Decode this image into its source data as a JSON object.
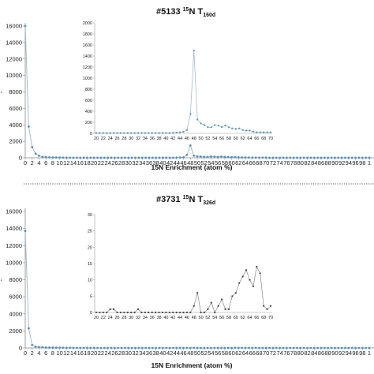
{
  "chart_data": [
    {
      "type": "line",
      "title": {
        "id": "#5133",
        "sup": "15",
        "main": "N T",
        "sub": "160d"
      },
      "xlabel": "15N Enrichment (atom %)",
      "xlim": [
        0,
        100
      ],
      "ylim": [
        0,
        16000
      ],
      "yticks": [
        0,
        2000,
        4000,
        6000,
        8000,
        10000,
        12000,
        14000,
        16000
      ],
      "xtick_labels": [
        "0",
        "2",
        "4",
        "6",
        "8",
        "10",
        "12",
        "14",
        "16",
        "18",
        "20",
        "22",
        "24",
        "26",
        "28",
        "30",
        "32",
        "34",
        "36",
        "38",
        "40",
        "42",
        "44",
        "46",
        "48",
        "50",
        "52",
        "54",
        "56",
        "58",
        "60",
        "62",
        "64",
        "66",
        "68",
        "70",
        "72",
        "74",
        "76",
        "78",
        "80",
        "82",
        "84",
        "86",
        "88",
        "90",
        "92",
        "94",
        "96",
        "98",
        "1"
      ],
      "series": [
        {
          "x": [
            0,
            1,
            2,
            3,
            4,
            5,
            6,
            7,
            8,
            9,
            10,
            11,
            12,
            13,
            14,
            15,
            16,
            17,
            18,
            19,
            20,
            21,
            22,
            23,
            24,
            25,
            26,
            27,
            28,
            29,
            30,
            31,
            32,
            33,
            34,
            35,
            36,
            37,
            38,
            39,
            40,
            41,
            42,
            43,
            44,
            45,
            46,
            47,
            48,
            49,
            50,
            51,
            52,
            53,
            54,
            55,
            56,
            57,
            58,
            59,
            60,
            61,
            62,
            63,
            64,
            65,
            66,
            67,
            68,
            69,
            70,
            71,
            72,
            73,
            74,
            75,
            76,
            77,
            78,
            79,
            80,
            81,
            82,
            83,
            84,
            85,
            86,
            87,
            88,
            89,
            90,
            91,
            92,
            93,
            94,
            95,
            96,
            97,
            98,
            99,
            100
          ],
          "values": [
            16000,
            3800,
            1300,
            500,
            250,
            120,
            80,
            60,
            50,
            40,
            30,
            25,
            20,
            15,
            10,
            10,
            8,
            5,
            5,
            5,
            5,
            5,
            5,
            5,
            5,
            5,
            5,
            5,
            5,
            5,
            5,
            5,
            5,
            5,
            5,
            5,
            5,
            5,
            5,
            5,
            5,
            5,
            10,
            15,
            20,
            30,
            60,
            350,
            1500,
            250,
            180,
            150,
            110,
            110,
            150,
            140,
            110,
            140,
            110,
            90,
            80,
            90,
            60,
            50,
            50,
            30,
            20,
            20,
            20,
            20,
            20,
            5,
            5,
            5,
            5,
            5,
            5,
            5,
            5,
            5,
            5,
            5,
            5,
            5,
            5,
            5,
            5,
            5,
            5,
            5,
            5,
            5,
            5,
            5,
            5,
            5,
            5,
            5,
            5,
            5,
            5
          ]
        }
      ],
      "inset": {
        "xlim": [
          20,
          70
        ],
        "ylim": [
          0,
          2000
        ],
        "yticks": [
          0,
          200,
          400,
          600,
          800,
          1000,
          1200,
          1400,
          1600,
          1800,
          2000
        ],
        "xtick_labels": [
          "20",
          "22",
          "24",
          "26",
          "28",
          "30",
          "32",
          "34",
          "36",
          "38",
          "40",
          "42",
          "44",
          "46",
          "48",
          "50",
          "52",
          "54",
          "56",
          "58",
          "60",
          "62",
          "64",
          "66",
          "68",
          "70"
        ],
        "x": [
          20,
          21,
          22,
          23,
          24,
          25,
          26,
          27,
          28,
          29,
          30,
          31,
          32,
          33,
          34,
          35,
          36,
          37,
          38,
          39,
          40,
          41,
          42,
          43,
          44,
          45,
          46,
          47,
          48,
          49,
          50,
          51,
          52,
          53,
          54,
          55,
          56,
          57,
          58,
          59,
          60,
          61,
          62,
          63,
          64,
          65,
          66,
          67,
          68,
          69,
          70
        ],
        "values": [
          5,
          5,
          5,
          5,
          5,
          5,
          5,
          5,
          5,
          5,
          5,
          5,
          5,
          5,
          5,
          5,
          5,
          5,
          5,
          5,
          5,
          5,
          10,
          15,
          20,
          30,
          60,
          350,
          1500,
          250,
          180,
          150,
          110,
          110,
          150,
          140,
          110,
          140,
          110,
          90,
          80,
          90,
          60,
          50,
          50,
          30,
          20,
          20,
          20,
          20,
          20
        ]
      }
    },
    {
      "type": "line",
      "title": {
        "id": "#3731",
        "sup": "15",
        "main": "N T",
        "sub": "326d"
      },
      "xlabel": "15N Enrichment (atom %)",
      "xlim": [
        0,
        100
      ],
      "ylim": [
        0,
        16000
      ],
      "yticks": [
        0,
        2000,
        4000,
        6000,
        8000,
        10000,
        12000,
        14000,
        16000
      ],
      "xtick_labels": [
        "0",
        "2",
        "4",
        "6",
        "8",
        "10",
        "12",
        "14",
        "16",
        "18",
        "20",
        "22",
        "24",
        "26",
        "28",
        "30",
        "32",
        "34",
        "36",
        "38",
        "40",
        "42",
        "44",
        "46",
        "48",
        "50",
        "52",
        "54",
        "56",
        "58",
        "60",
        "62",
        "64",
        "66",
        "68",
        "70",
        "72",
        "74",
        "76",
        "78",
        "80",
        "82",
        "84",
        "86",
        "88",
        "90",
        "92",
        "94",
        "96",
        "98",
        "1"
      ],
      "series": [
        {
          "x": [
            0,
            1,
            2,
            3,
            4,
            5,
            6,
            7,
            8,
            9,
            10,
            11,
            12,
            13,
            14,
            15,
            16,
            17,
            18,
            19,
            20,
            21,
            22,
            23,
            24,
            25,
            26,
            27,
            28,
            29,
            30,
            31,
            32,
            33,
            34,
            35,
            36,
            37,
            38,
            39,
            40,
            41,
            42,
            43,
            44,
            45,
            46,
            47,
            48,
            49,
            50,
            51,
            52,
            53,
            54,
            55,
            56,
            57,
            58,
            59,
            60,
            61,
            62,
            63,
            64,
            65,
            66,
            67,
            68,
            69,
            70,
            71,
            72,
            73,
            74,
            75,
            76,
            77,
            78,
            79,
            80,
            81,
            82,
            83,
            84,
            85,
            86,
            87,
            88,
            89,
            90,
            91,
            92,
            93,
            94,
            95,
            96,
            97,
            98,
            99,
            100
          ],
          "values": [
            13700,
            2300,
            350,
            150,
            100,
            80,
            60,
            50,
            40,
            35,
            30,
            25,
            20,
            15,
            12,
            10,
            8,
            5,
            5,
            5,
            0,
            0,
            0,
            0,
            1,
            1,
            0,
            0,
            0,
            0,
            0,
            0,
            1,
            0,
            0,
            0,
            0,
            0,
            0,
            0,
            0,
            0,
            0,
            0,
            0,
            0,
            0,
            0,
            2,
            6,
            0,
            0,
            1,
            3,
            0,
            2,
            4,
            1,
            1,
            5,
            6,
            9,
            11,
            13,
            10,
            8,
            14,
            12,
            2,
            1,
            2,
            0,
            0,
            0,
            0,
            0,
            0,
            0,
            0,
            0,
            0,
            0,
            0,
            0,
            0,
            0,
            0,
            0,
            0,
            0,
            0,
            0,
            0,
            0,
            0,
            0,
            0,
            0,
            0,
            0,
            0
          ]
        }
      ],
      "inset": {
        "xlim": [
          20,
          70
        ],
        "ylim": [
          0,
          30
        ],
        "yticks": [
          0,
          5,
          10,
          15,
          20,
          25,
          30
        ],
        "xtick_labels": [
          "20",
          "22",
          "24",
          "26",
          "28",
          "30",
          "32",
          "34",
          "36",
          "38",
          "40",
          "42",
          "44",
          "46",
          "48",
          "50",
          "52",
          "54",
          "56",
          "58",
          "60",
          "62",
          "64",
          "66",
          "68",
          "70"
        ],
        "x": [
          20,
          21,
          22,
          23,
          24,
          25,
          26,
          27,
          28,
          29,
          30,
          31,
          32,
          33,
          34,
          35,
          36,
          37,
          38,
          39,
          40,
          41,
          42,
          43,
          44,
          45,
          46,
          47,
          48,
          49,
          50,
          51,
          52,
          53,
          54,
          55,
          56,
          57,
          58,
          59,
          60,
          61,
          62,
          63,
          64,
          65,
          66,
          67,
          68,
          69,
          70
        ],
        "values": [
          0,
          0,
          0,
          0,
          1,
          1,
          0,
          0,
          0,
          0,
          0,
          0,
          1,
          0,
          0,
          0,
          0,
          0,
          0,
          0,
          0,
          0,
          0,
          0,
          0,
          0,
          0,
          0,
          2,
          6,
          0,
          0,
          1,
          3,
          0,
          2,
          4,
          1,
          1,
          5,
          6,
          9,
          11,
          13,
          10,
          8,
          14,
          12,
          2,
          1,
          2
        ]
      }
    }
  ]
}
